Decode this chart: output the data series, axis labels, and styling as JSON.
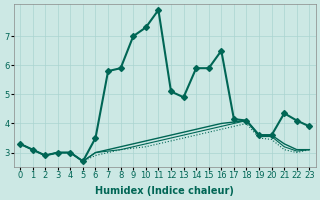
{
  "xlabel": "Humidex (Indice chaleur)",
  "ylabel": "",
  "background_color": "#cce8e4",
  "grid_color": "#aad4d0",
  "line_color": "#006655",
  "xlim": [
    -0.5,
    23.5
  ],
  "ylim": [
    2.5,
    8.1
  ],
  "yticks": [
    3,
    4,
    5,
    6,
    7
  ],
  "xticks": [
    0,
    1,
    2,
    3,
    4,
    5,
    6,
    7,
    8,
    9,
    10,
    11,
    12,
    13,
    14,
    15,
    16,
    17,
    18,
    19,
    20,
    21,
    22,
    23
  ],
  "series": [
    {
      "x": [
        0,
        1,
        2,
        3,
        4,
        5,
        6,
        7,
        8,
        9,
        10,
        11,
        12,
        13,
        14,
        15,
        16,
        17,
        18,
        19,
        20,
        21,
        22,
        23
      ],
      "y": [
        3.3,
        3.1,
        2.9,
        3.0,
        3.0,
        2.7,
        3.5,
        5.8,
        5.9,
        7.0,
        7.3,
        7.9,
        5.1,
        4.9,
        5.9,
        5.9,
        6.5,
        4.15,
        4.1,
        3.6,
        3.6,
        4.35,
        4.1,
        3.9
      ],
      "marker": "D",
      "markersize": 3,
      "linewidth": 1.5,
      "linestyle": "solid"
    },
    {
      "x": [
        0,
        1,
        2,
        3,
        4,
        5,
        6,
        7,
        8,
        9,
        10,
        11,
        12,
        13,
        14,
        15,
        16,
        17,
        18,
        19,
        20,
        21,
        22,
        23
      ],
      "y": [
        3.3,
        3.1,
        2.9,
        3.0,
        3.0,
        2.7,
        3.0,
        3.1,
        3.2,
        3.3,
        3.4,
        3.5,
        3.6,
        3.7,
        3.8,
        3.9,
        4.0,
        4.05,
        4.1,
        3.6,
        3.6,
        3.3,
        3.1,
        3.1
      ],
      "marker": null,
      "markersize": 0,
      "linewidth": 1.0,
      "linestyle": "solid"
    },
    {
      "x": [
        0,
        1,
        2,
        3,
        4,
        5,
        6,
        7,
        8,
        9,
        10,
        11,
        12,
        13,
        14,
        15,
        16,
        17,
        18,
        19,
        20,
        21,
        22,
        23
      ],
      "y": [
        3.3,
        3.1,
        2.9,
        3.0,
        3.0,
        2.7,
        3.0,
        3.05,
        3.1,
        3.2,
        3.3,
        3.4,
        3.5,
        3.6,
        3.7,
        3.8,
        3.9,
        4.0,
        4.1,
        3.55,
        3.55,
        3.2,
        3.05,
        3.1
      ],
      "marker": null,
      "markersize": 0,
      "linewidth": 0.8,
      "linestyle": "solid"
    },
    {
      "x": [
        0,
        1,
        2,
        3,
        4,
        5,
        6,
        7,
        8,
        9,
        10,
        11,
        12,
        13,
        14,
        15,
        16,
        17,
        18,
        19,
        20,
        21,
        22,
        23
      ],
      "y": [
        3.3,
        3.1,
        2.9,
        3.0,
        3.0,
        2.7,
        2.9,
        3.0,
        3.1,
        3.15,
        3.2,
        3.3,
        3.4,
        3.5,
        3.6,
        3.7,
        3.8,
        3.9,
        4.0,
        3.5,
        3.45,
        3.1,
        3.0,
        3.1
      ],
      "marker": null,
      "markersize": 0,
      "linewidth": 0.8,
      "linestyle": "dotted"
    }
  ]
}
